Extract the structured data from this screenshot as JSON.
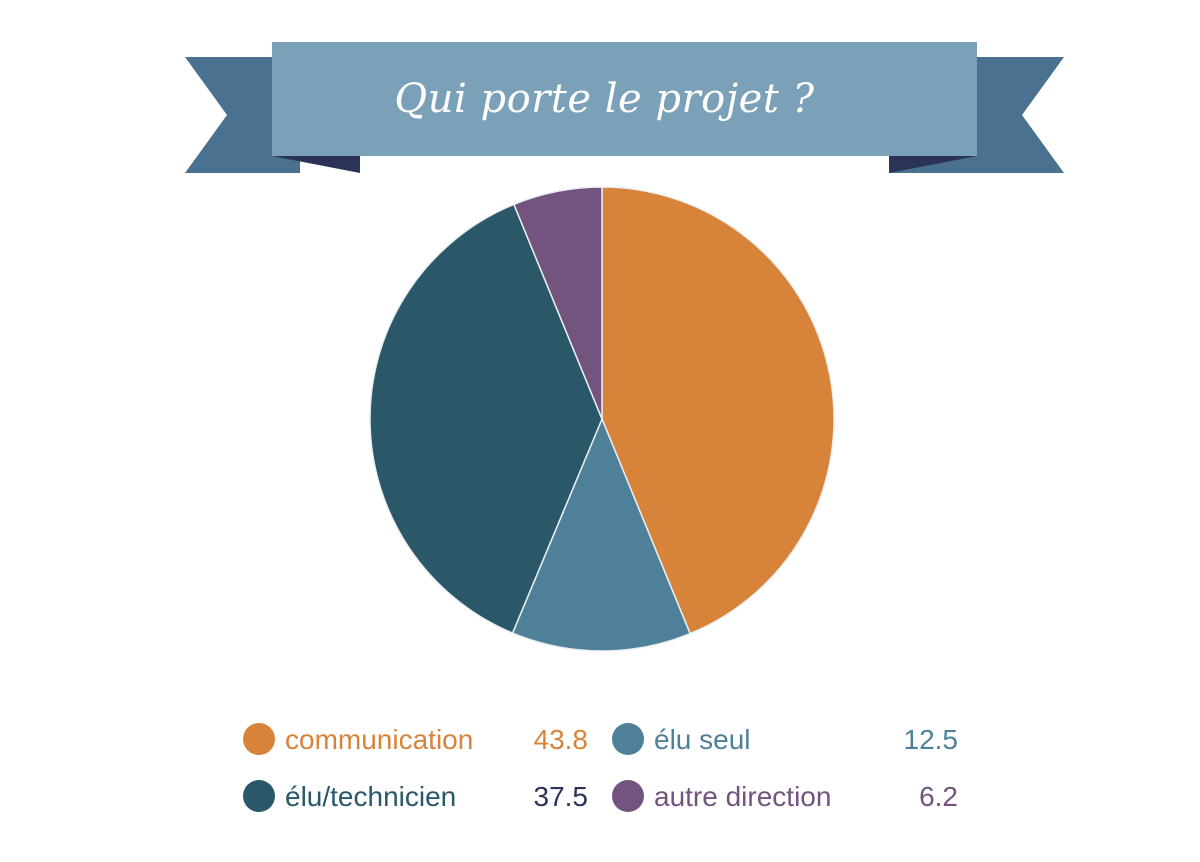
{
  "colors": {
    "banner_face": "#7aa1b7",
    "banner_tail": "#4a718f",
    "banner_fold": "#2b3357"
  },
  "chart_data": {
    "type": "pie",
    "title": "Qui porte le projet ?",
    "start": "top",
    "direction": "clockwise",
    "slices": [
      {
        "label": "communication",
        "value": 43.8,
        "color": "#d8833a",
        "text_color": "#d8833a",
        "value_color": "#d8833a"
      },
      {
        "label": "élu seul",
        "value": 12.5,
        "color": "#4f8099",
        "text_color": "#4f8099",
        "value_color": "#4f8099"
      },
      {
        "label": "élu/technicien",
        "value": 37.5,
        "color": "#2a5868",
        "text_color": "#2a5868",
        "value_color": "#2b3357"
      },
      {
        "label": "autre direction",
        "value": 6.2,
        "color": "#72547f",
        "text_color": "#72547f",
        "value_color": "#72547f"
      }
    ],
    "legend_position": "bottom"
  }
}
